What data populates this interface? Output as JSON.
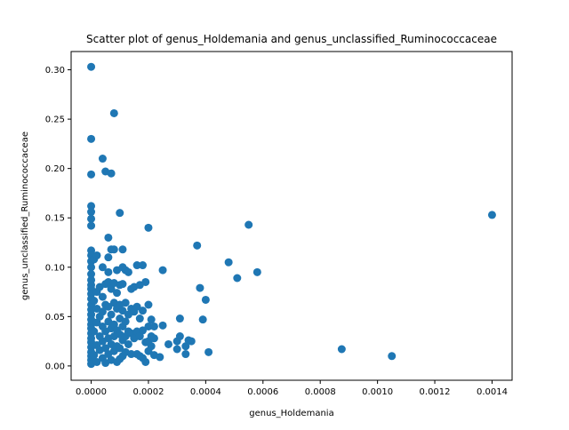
{
  "chart_data": {
    "type": "scatter",
    "title": "Scatter plot of genus_Holdemania and genus_unclassified_Ruminococcaceae",
    "xlabel": "genus_Holdemania",
    "ylabel": "genus_unclassified_Ruminococcaceae",
    "xlim": [
      -7e-05,
      0.00147
    ],
    "ylim": [
      -0.0145,
      0.3185
    ],
    "xticks": [
      0.0,
      0.0002,
      0.0004,
      0.0006,
      0.0008,
      0.001,
      0.0012,
      0.0014
    ],
    "xtick_labels": [
      "0.0000",
      "0.0002",
      "0.0004",
      "0.0006",
      "0.0008",
      "0.0010",
      "0.0012",
      "0.0014"
    ],
    "yticks": [
      0.0,
      0.05,
      0.1,
      0.15,
      0.2,
      0.25,
      0.3
    ],
    "ytick_labels": [
      "0.00",
      "0.05",
      "0.10",
      "0.15",
      "0.20",
      "0.25",
      "0.30"
    ],
    "grid": false,
    "legend": "none",
    "marker_color": "#1f77b4",
    "points": [
      [
        0.0,
        0.303
      ],
      [
        0.0,
        0.23
      ],
      [
        0.0,
        0.194
      ],
      [
        0.0,
        0.162
      ],
      [
        0.0,
        0.156
      ],
      [
        0.0,
        0.149
      ],
      [
        0.0,
        0.142
      ],
      [
        0.0,
        0.117
      ],
      [
        0.0,
        0.112
      ],
      [
        0.0,
        0.106
      ],
      [
        0.0,
        0.1
      ],
      [
        0.0,
        0.093
      ],
      [
        0.0,
        0.087
      ],
      [
        0.0,
        0.082
      ],
      [
        0.0,
        0.078
      ],
      [
        0.0,
        0.073
      ],
      [
        0.0,
        0.068
      ],
      [
        0.0,
        0.062
      ],
      [
        0.0,
        0.057
      ],
      [
        0.0,
        0.052
      ],
      [
        0.0,
        0.047
      ],
      [
        0.0,
        0.042
      ],
      [
        0.0,
        0.038
      ],
      [
        0.0,
        0.033
      ],
      [
        0.0,
        0.028
      ],
      [
        0.0,
        0.024
      ],
      [
        0.0,
        0.019
      ],
      [
        0.0,
        0.014
      ],
      [
        0.0,
        0.01
      ],
      [
        0.0,
        0.006
      ],
      [
        0.0,
        0.002
      ],
      [
        1e-05,
        0.108
      ],
      [
        1e-05,
        0.066
      ],
      [
        1e-05,
        0.035
      ],
      [
        1e-05,
        0.011
      ],
      [
        2e-05,
        0.112
      ],
      [
        2e-05,
        0.075
      ],
      [
        2e-05,
        0.058
      ],
      [
        2e-05,
        0.044
      ],
      [
        2e-05,
        0.021
      ],
      [
        2e-05,
        0.004
      ],
      [
        3e-05,
        0.08
      ],
      [
        3e-05,
        0.05
      ],
      [
        3e-05,
        0.03
      ],
      [
        3e-05,
        0.016
      ],
      [
        4e-05,
        0.21
      ],
      [
        4e-05,
        0.1
      ],
      [
        4e-05,
        0.07
      ],
      [
        4e-05,
        0.055
      ],
      [
        4e-05,
        0.04
      ],
      [
        4e-05,
        0.025
      ],
      [
        4e-05,
        0.008
      ],
      [
        5e-05,
        0.197
      ],
      [
        5e-05,
        0.083
      ],
      [
        5e-05,
        0.062
      ],
      [
        5e-05,
        0.035
      ],
      [
        5e-05,
        0.018
      ],
      [
        5e-05,
        0.003
      ],
      [
        6e-05,
        0.13
      ],
      [
        6e-05,
        0.11
      ],
      [
        6e-05,
        0.095
      ],
      [
        6e-05,
        0.085
      ],
      [
        6e-05,
        0.06
      ],
      [
        6e-05,
        0.045
      ],
      [
        6e-05,
        0.028
      ],
      [
        6e-05,
        0.012
      ],
      [
        7e-05,
        0.195
      ],
      [
        7e-05,
        0.118
      ],
      [
        7e-05,
        0.078
      ],
      [
        7e-05,
        0.052
      ],
      [
        7e-05,
        0.038
      ],
      [
        7e-05,
        0.022
      ],
      [
        7e-05,
        0.006
      ],
      [
        8e-05,
        0.256
      ],
      [
        8e-05,
        0.118
      ],
      [
        8e-05,
        0.084
      ],
      [
        8e-05,
        0.064
      ],
      [
        8e-05,
        0.042
      ],
      [
        8e-05,
        0.03
      ],
      [
        8e-05,
        0.015
      ],
      [
        9e-05,
        0.097
      ],
      [
        9e-05,
        0.074
      ],
      [
        9e-05,
        0.058
      ],
      [
        9e-05,
        0.036
      ],
      [
        9e-05,
        0.02
      ],
      [
        9e-05,
        0.004
      ],
      [
        0.0001,
        0.155
      ],
      [
        0.0001,
        0.082
      ],
      [
        0.0001,
        0.062
      ],
      [
        0.0001,
        0.048
      ],
      [
        0.0001,
        0.032
      ],
      [
        0.0001,
        0.018
      ],
      [
        0.0001,
        0.007
      ],
      [
        0.00011,
        0.118
      ],
      [
        0.00011,
        0.1
      ],
      [
        0.00011,
        0.083
      ],
      [
        0.00011,
        0.056
      ],
      [
        0.00011,
        0.04
      ],
      [
        0.00011,
        0.026
      ],
      [
        0.00011,
        0.01
      ],
      [
        0.00012,
        0.097
      ],
      [
        0.00012,
        0.064
      ],
      [
        0.00012,
        0.045
      ],
      [
        0.00012,
        0.03
      ],
      [
        0.00012,
        0.014
      ],
      [
        0.00013,
        0.095
      ],
      [
        0.00013,
        0.052
      ],
      [
        0.00013,
        0.035
      ],
      [
        0.00013,
        0.022
      ],
      [
        0.00014,
        0.078
      ],
      [
        0.00014,
        0.058
      ],
      [
        0.00014,
        0.033
      ],
      [
        0.00014,
        0.012
      ],
      [
        0.00015,
        0.08
      ],
      [
        0.00015,
        0.055
      ],
      [
        0.00015,
        0.028
      ],
      [
        0.00016,
        0.102
      ],
      [
        0.00016,
        0.06
      ],
      [
        0.00016,
        0.035
      ],
      [
        0.00016,
        0.012
      ],
      [
        0.00017,
        0.082
      ],
      [
        0.00017,
        0.048
      ],
      [
        0.00017,
        0.03
      ],
      [
        0.00017,
        0.01
      ],
      [
        0.00018,
        0.102
      ],
      [
        0.00018,
        0.056
      ],
      [
        0.00018,
        0.036
      ],
      [
        0.00018,
        0.008
      ],
      [
        0.00019,
        0.085
      ],
      [
        0.00019,
        0.024
      ],
      [
        0.00019,
        0.004
      ],
      [
        0.0002,
        0.14
      ],
      [
        0.0002,
        0.062
      ],
      [
        0.0002,
        0.04
      ],
      [
        0.0002,
        0.025
      ],
      [
        0.0002,
        0.015
      ],
      [
        0.00021,
        0.047
      ],
      [
        0.00021,
        0.03
      ],
      [
        0.00021,
        0.02
      ],
      [
        0.00022,
        0.04
      ],
      [
        0.00022,
        0.028
      ],
      [
        0.00022,
        0.011
      ],
      [
        0.00024,
        0.009
      ],
      [
        0.00025,
        0.097
      ],
      [
        0.00025,
        0.041
      ],
      [
        0.00027,
        0.022
      ],
      [
        0.0003,
        0.017
      ],
      [
        0.0003,
        0.025
      ],
      [
        0.00031,
        0.03
      ],
      [
        0.00031,
        0.048
      ],
      [
        0.00033,
        0.02
      ],
      [
        0.00033,
        0.012
      ],
      [
        0.00034,
        0.026
      ],
      [
        0.00035,
        0.025
      ],
      [
        0.00037,
        0.122
      ],
      [
        0.00038,
        0.079
      ],
      [
        0.00039,
        0.047
      ],
      [
        0.0004,
        0.067
      ],
      [
        0.00041,
        0.014
      ],
      [
        0.00048,
        0.105
      ],
      [
        0.00051,
        0.089
      ],
      [
        0.00055,
        0.143
      ],
      [
        0.00058,
        0.095
      ],
      [
        0.000875,
        0.017
      ],
      [
        0.00105,
        0.01
      ],
      [
        0.0014,
        0.153
      ]
    ]
  }
}
